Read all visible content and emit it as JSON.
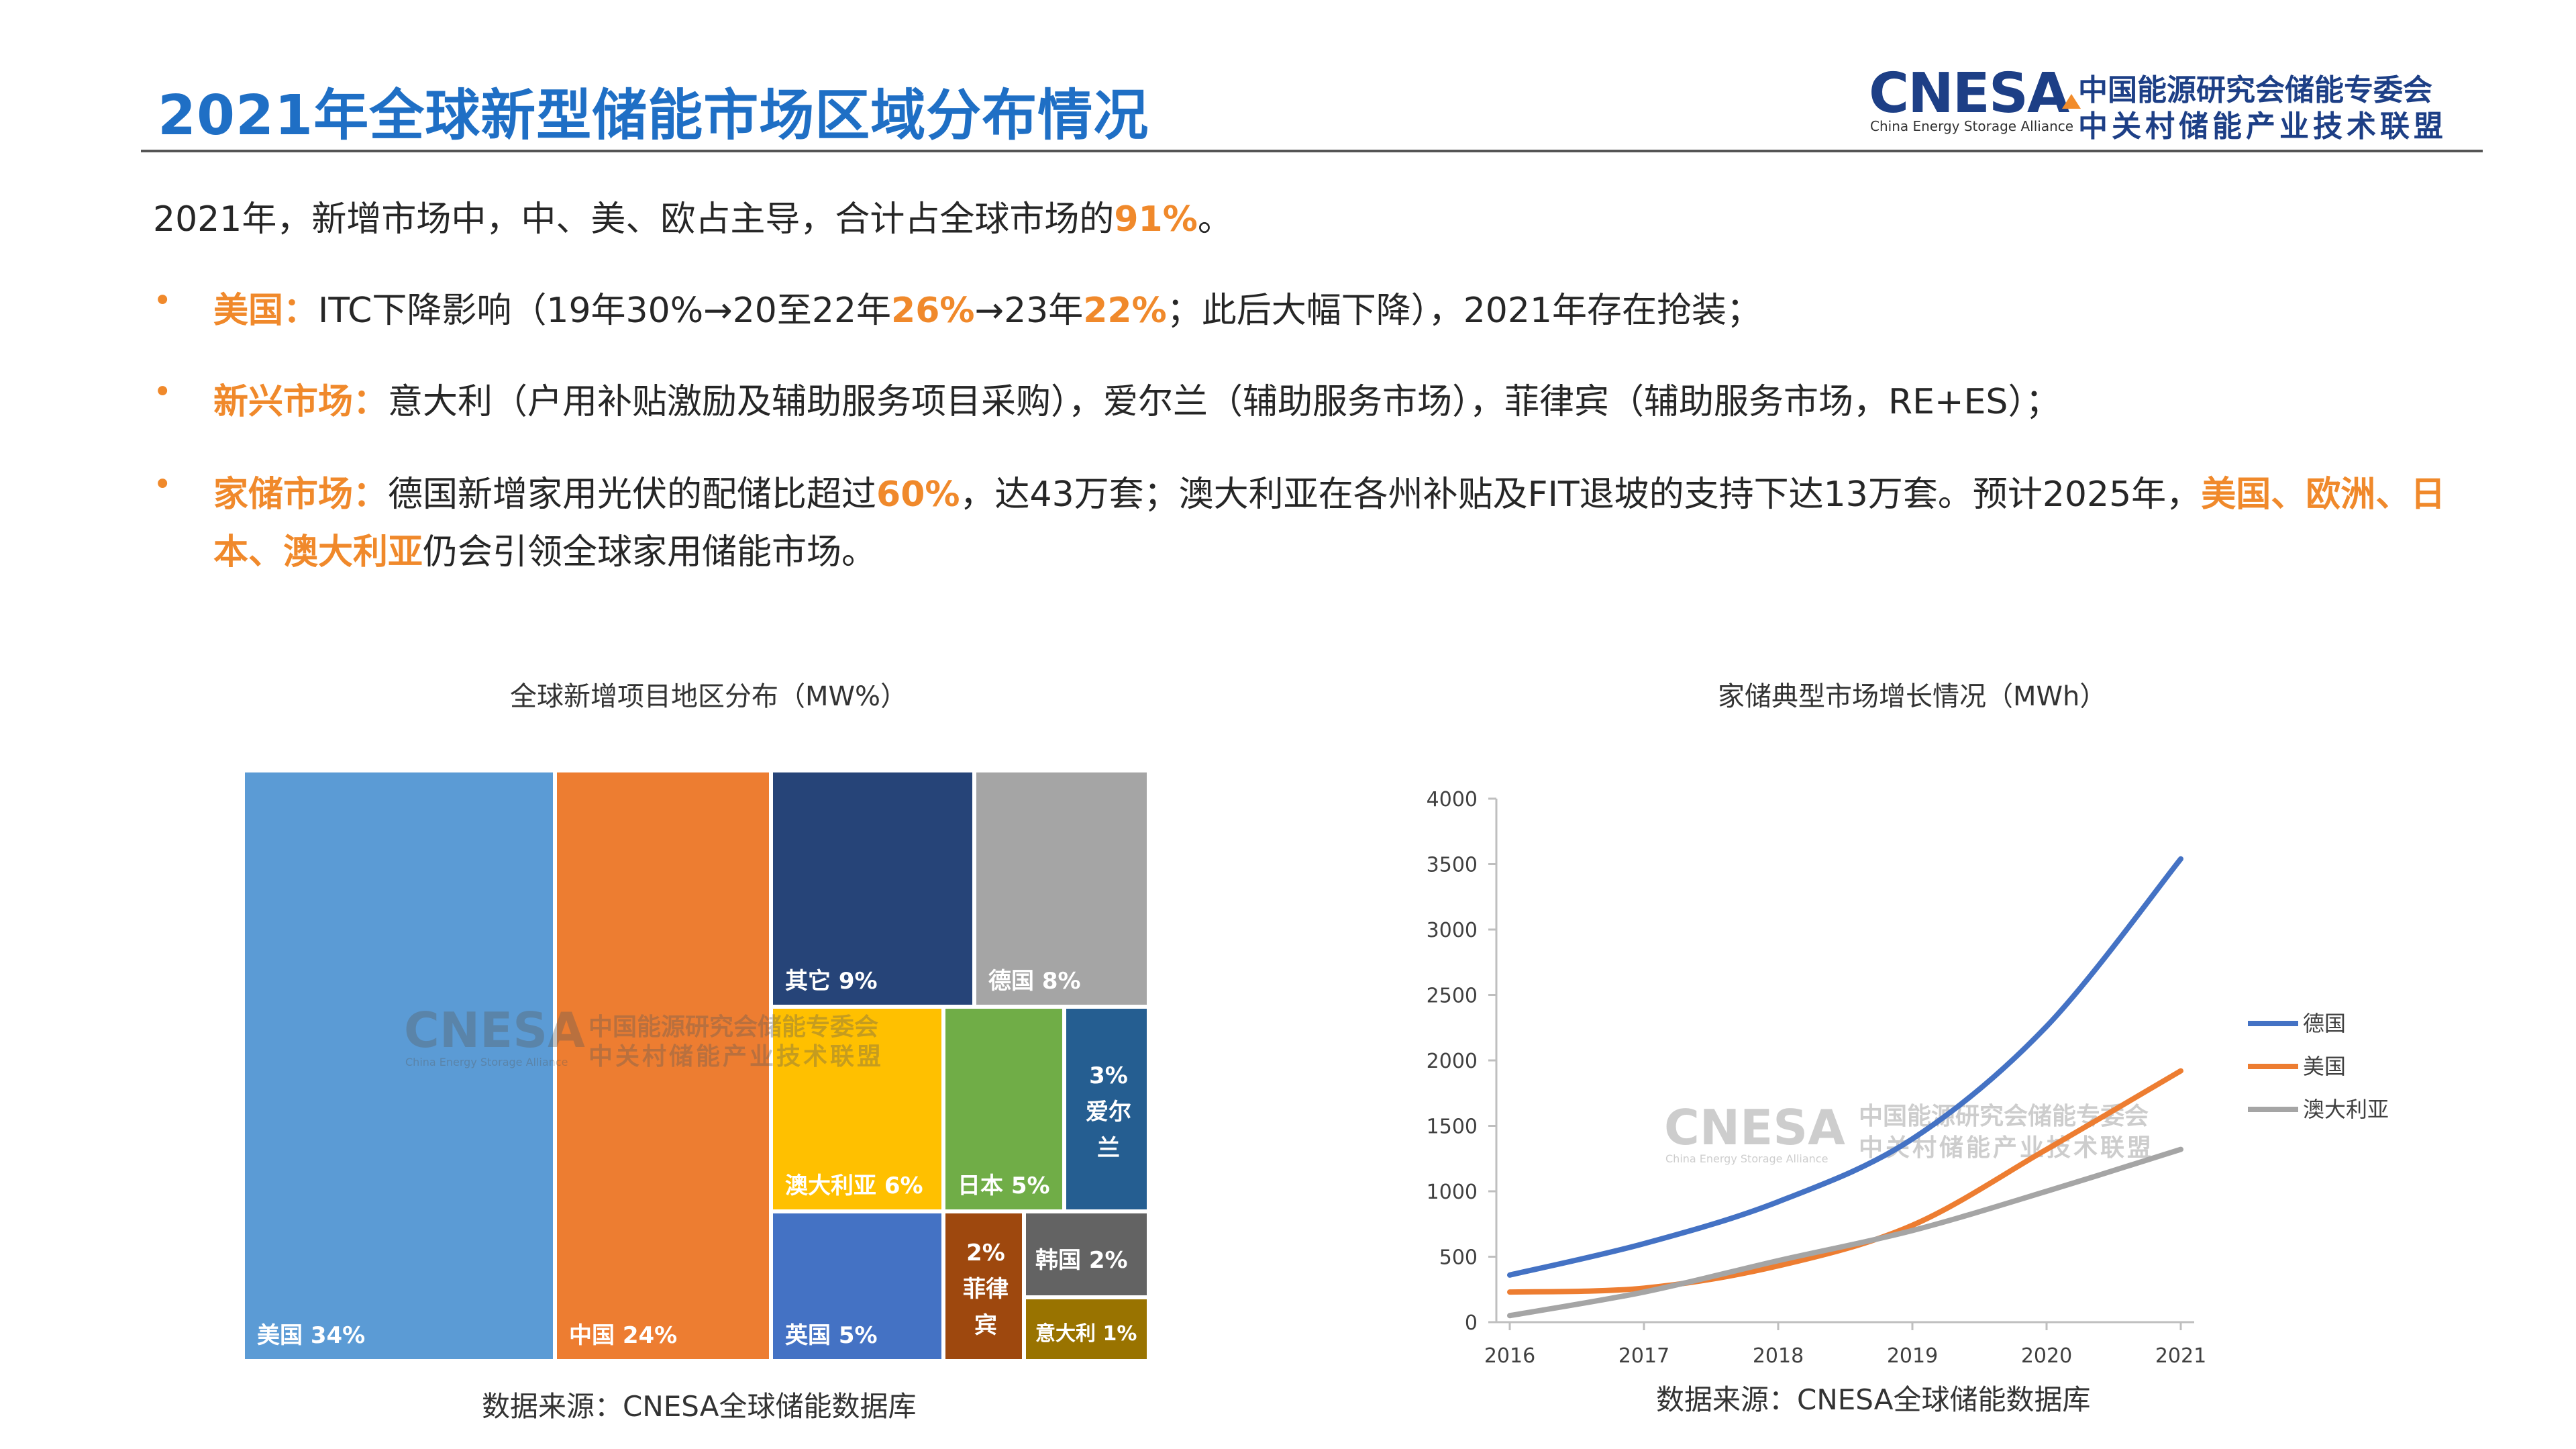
{
  "header": {
    "title": "2021年全球新型储能市场区域分布情况",
    "logo": {
      "name": "CNESA",
      "subtitle_en": "China Energy Storage Alliance",
      "line1": "中国能源研究会储能专委会",
      "line2": "中关村储能产业技术联盟"
    }
  },
  "summary": {
    "lead": "2021年，新增市场中，中、美、欧占主导，合计占全球市场的",
    "lead_highlight": "91%",
    "lead_end": "。"
  },
  "bullets": [
    {
      "label": "美国：",
      "p1": "ITC下降影响（19年30%→20至22年",
      "h1": "26%",
      "p2": "→23年",
      "h2": "22%",
      "p3": "；此后大幅下降），2021年存在抢装；"
    },
    {
      "label": "新兴市场：",
      "p1": "意大利（户用补贴激励及辅助服务项目采购），爱尔兰（辅助服务市场），菲律宾（辅助服务市场，RE+ES）；"
    },
    {
      "label": "家储市场：",
      "p1": "德国新增家用光伏的配储比超过",
      "h1": "60%",
      "p2": "，达43万套；澳大利亚在各州补贴及FIT退坡的支持下达13万套。预计2025年，",
      "h2": "美国、欧洲、日本、澳大利亚",
      "p3": "仍会引领全球家用储能市场。"
    }
  ],
  "watermark": {
    "name": "CNESA",
    "line1": "中国能源研究会储能专委会",
    "line2": "中关村储能产业技术联盟",
    "en": "China Energy Storage Alliance"
  },
  "chart_data": [
    {
      "type": "treemap",
      "title": "全球新增项目地区分布（MW%）",
      "source": "数据来源：CNESA全球储能数据库",
      "items": [
        {
          "name": "美国",
          "label": "34%",
          "value": 34,
          "color": "#5b9bd5"
        },
        {
          "name": "中国",
          "label": "24%",
          "value": 24,
          "color": "#ed7d31"
        },
        {
          "name": "其它",
          "label": "9%",
          "value": 9,
          "color": "#264478"
        },
        {
          "name": "德国",
          "label": "8%",
          "value": 8,
          "color": "#a5a5a5"
        },
        {
          "name": "澳大利亚",
          "label": "6%",
          "value": 6,
          "color": "#ffc000"
        },
        {
          "name": "日本",
          "label": "5%",
          "value": 5,
          "color": "#70ad47"
        },
        {
          "name": "爱尔兰",
          "label": "3%",
          "value": 3,
          "color": "#255e91"
        },
        {
          "name": "英国",
          "label": "5%",
          "value": 5,
          "color": "#4472c4"
        },
        {
          "name": "菲律宾",
          "label": "2%",
          "value": 2,
          "color": "#9e480e"
        },
        {
          "name": "韩国",
          "label": "2%",
          "value": 2,
          "color": "#636363"
        },
        {
          "name": "意大利",
          "label": "1%",
          "value": 1,
          "color": "#997300"
        }
      ]
    },
    {
      "type": "line",
      "title": "家储典型市场增长情况（MWh）",
      "source": "数据来源：CNESA全球储能数据库",
      "x": [
        2016,
        2017,
        2018,
        2019,
        2020,
        2021
      ],
      "ylim": [
        0,
        4000
      ],
      "yticks": [
        0,
        500,
        1000,
        1500,
        2000,
        2500,
        3000,
        3500,
        4000
      ],
      "legend": "right",
      "series": [
        {
          "name": "德国",
          "color": "#4472c4",
          "values": [
            360,
            600,
            920,
            1400,
            2260,
            3540
          ]
        },
        {
          "name": "美国",
          "color": "#ed7d31",
          "values": [
            230,
            260,
            430,
            740,
            1320,
            1920
          ]
        },
        {
          "name": "澳大利亚",
          "color": "#a5a5a5",
          "values": [
            50,
            230,
            470,
            700,
            1000,
            1320
          ]
        }
      ]
    }
  ]
}
